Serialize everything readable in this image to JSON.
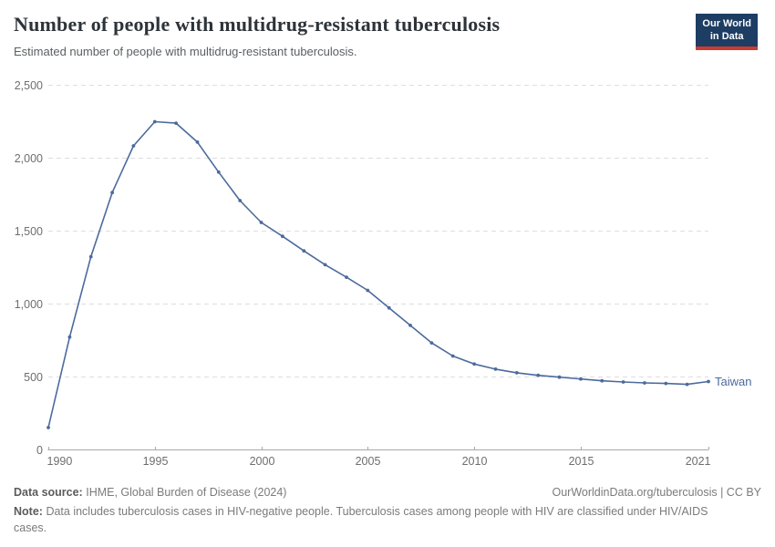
{
  "header": {
    "title": "Number of people with multidrug-resistant tuberculosis",
    "subtitle": "Estimated number of people with multidrug-resistant tuberculosis.",
    "logo": {
      "line1": "Our World",
      "line2": "in Data"
    }
  },
  "colors": {
    "line": "#4C6A9C",
    "logo_bg": "#1d3d63",
    "logo_accent": "#cc3b31",
    "grid": "#dedede",
    "axis": "#a9a9a9",
    "tick_text": "#6e6e6e"
  },
  "chart_data": {
    "type": "line",
    "title": "Number of people with multidrug-resistant tuberculosis",
    "subtitle": "Estimated number of people with multidrug-resistant tuberculosis.",
    "xlabel": "",
    "ylabel": "",
    "xlim": [
      1990,
      2021
    ],
    "ylim": [
      0,
      2500
    ],
    "x_ticks": [
      1990,
      1995,
      2000,
      2005,
      2010,
      2015,
      2021
    ],
    "y_ticks": [
      0,
      500,
      1000,
      1500,
      2000,
      2500
    ],
    "grid": "horizontal-dashed",
    "legend": "end-of-line-label",
    "end_label": "Taiwan",
    "series": [
      {
        "name": "Taiwan",
        "color": "#4C6A9C",
        "x": [
          1990,
          1991,
          1992,
          1993,
          1994,
          1995,
          1996,
          1997,
          1998,
          1999,
          2000,
          2001,
          2002,
          2003,
          2004,
          2005,
          2006,
          2007,
          2008,
          2009,
          2010,
          2011,
          2012,
          2013,
          2014,
          2015,
          2016,
          2017,
          2018,
          2019,
          2020,
          2021
        ],
        "values": [
          150,
          770,
          1320,
          1760,
          2080,
          2245,
          2235,
          2105,
          1900,
          1705,
          1555,
          1460,
          1360,
          1265,
          1180,
          1090,
          970,
          850,
          730,
          640,
          585,
          550,
          525,
          508,
          495,
          483,
          470,
          462,
          456,
          452,
          446,
          465
        ]
      }
    ]
  },
  "footer": {
    "source_label": "Data source:",
    "source_value": "IHME, Global Burden of Disease (2024)",
    "link": "OurWorldinData.org/tuberculosis | CC BY",
    "note_label": "Note:",
    "note_text": "Data includes tuberculosis cases in HIV-negative people. Tuberculosis cases among people with HIV are classified under HIV/AIDS cases."
  }
}
